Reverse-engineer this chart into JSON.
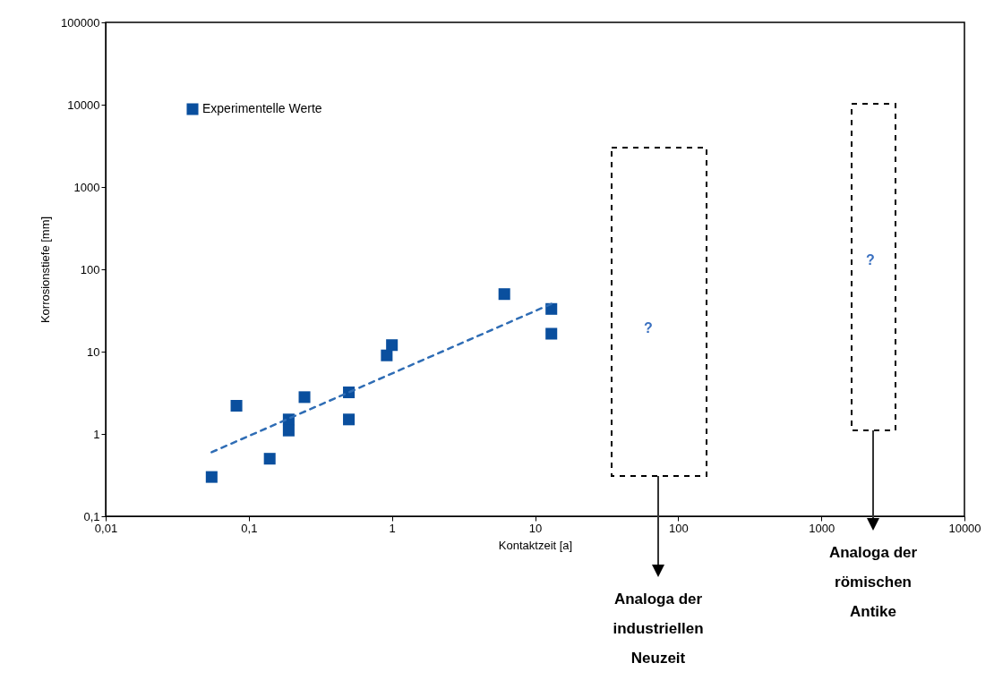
{
  "chart_data": {
    "type": "scatter",
    "xlabel": "Kontaktzeit [a]",
    "ylabel": "Korrosionstiefe [mm]",
    "log": "xy",
    "grid": false,
    "legend": "top left",
    "xlim": [
      0.01,
      10000
    ],
    "ylim": [
      0.1,
      100000
    ],
    "xticks": [
      {
        "value": 0.01,
        "label": "0,01"
      },
      {
        "value": 0.1,
        "label": "0,1"
      },
      1,
      10,
      100,
      1000,
      10000
    ],
    "yticks": [
      {
        "value": 0.1,
        "label": "0,1"
      },
      1,
      10,
      100,
      1000,
      10000,
      100000
    ],
    "series": [
      {
        "name": "Experimentelle Werte",
        "color": "#0a4f9e",
        "marker": "square",
        "x": [
          0.055,
          0.082,
          0.14,
          0.19,
          0.19,
          0.245,
          0.5,
          0.5,
          0.92,
          1.0,
          6.1,
          13,
          13
        ],
        "values": [
          0.3,
          2.2,
          0.5,
          1.5,
          1.1,
          2.8,
          3.2,
          1.5,
          9,
          12,
          50,
          33,
          16.5
        ]
      },
      {
        "type": "line",
        "color": "#2f6db5",
        "line_style": "dashed",
        "marker": "none",
        "x": [
          0.055,
          13
        ],
        "values": [
          0.6,
          38
        ]
      }
    ],
    "annotations": [
      "?",
      "?",
      "Analoga der industriellen Neuzeit",
      "Analoga der römischen Antike"
    ]
  }
}
